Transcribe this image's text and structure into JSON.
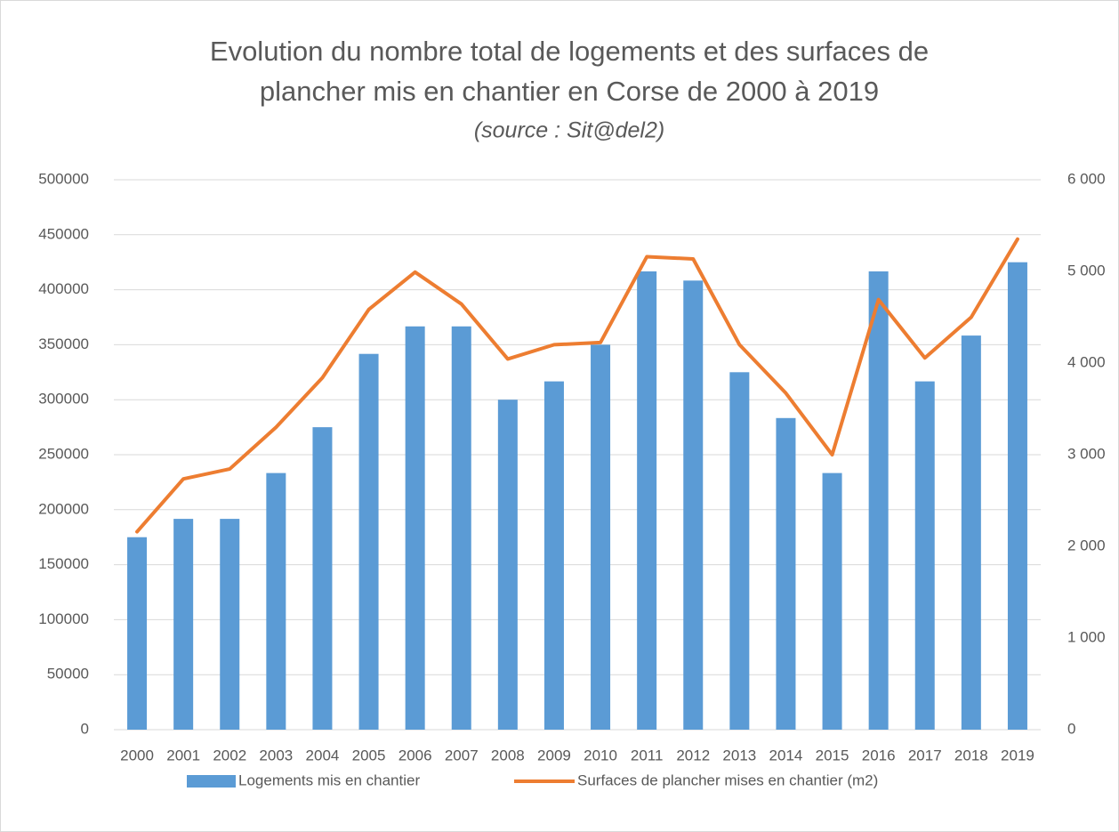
{
  "chart_data": {
    "type": "bar_line",
    "title": [
      "Evolution du nombre total de logements et des surfaces de",
      "plancher mis en chantier en Corse de 2000 à 2019"
    ],
    "subtitle": "(source : Sit@del2)",
    "categories": [
      "2000",
      "2001",
      "2002",
      "2003",
      "2004",
      "2005",
      "2006",
      "2007",
      "2008",
      "2009",
      "2010",
      "2011",
      "2012",
      "2013",
      "2014",
      "2015",
      "2016",
      "2017",
      "2018",
      "2019"
    ],
    "series": [
      {
        "name": "Logements mis en chantier",
        "type": "bar",
        "axis": "y2",
        "color": "#5b9bd5",
        "values": [
          2100,
          2300,
          2300,
          2800,
          3300,
          4100,
          4400,
          4400,
          3600,
          3800,
          4200,
          5000,
          4900,
          3900,
          3400,
          2800,
          5000,
          3800,
          4300,
          5100
        ]
      },
      {
        "name": "Surfaces de plancher mises en chantier (m2)",
        "type": "line",
        "axis": "y",
        "color": "#ed7d31",
        "values": [
          180000,
          228000,
          237000,
          275000,
          320000,
          382000,
          416000,
          387000,
          337000,
          350000,
          352000,
          430000,
          428000,
          350000,
          306000,
          250000,
          391000,
          338000,
          375000,
          446000
        ]
      }
    ],
    "ylim": [
      0,
      500000
    ],
    "yticks": [
      0,
      50000,
      100000,
      150000,
      200000,
      250000,
      300000,
      350000,
      400000,
      450000,
      500000
    ],
    "y2lim": [
      0,
      6000
    ],
    "y2ticks": [
      0,
      {
        "value": 1000,
        "label": "1 000"
      },
      {
        "value": 2000,
        "label": "2 000"
      },
      {
        "value": 3000,
        "label": "3 000"
      },
      {
        "value": 4000,
        "label": "4 000"
      },
      {
        "value": 5000,
        "label": "5 000"
      },
      {
        "value": 6000,
        "label": "6 000"
      }
    ],
    "grid": true,
    "legend": "bottom"
  }
}
